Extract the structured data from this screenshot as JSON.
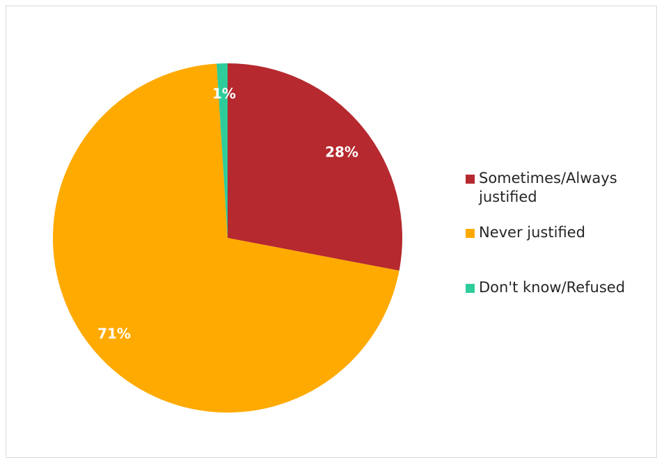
{
  "chart_data": {
    "type": "pie",
    "categories": [
      "Sometimes/Always justified",
      "Never justified",
      "Don't know/Refused"
    ],
    "values": [
      28,
      71,
      1
    ],
    "value_labels": [
      "28%",
      "71%",
      "1%"
    ],
    "colors": [
      "#b5292f",
      "#ffaa00",
      "#2ecc9b"
    ],
    "legend_position": "right"
  }
}
